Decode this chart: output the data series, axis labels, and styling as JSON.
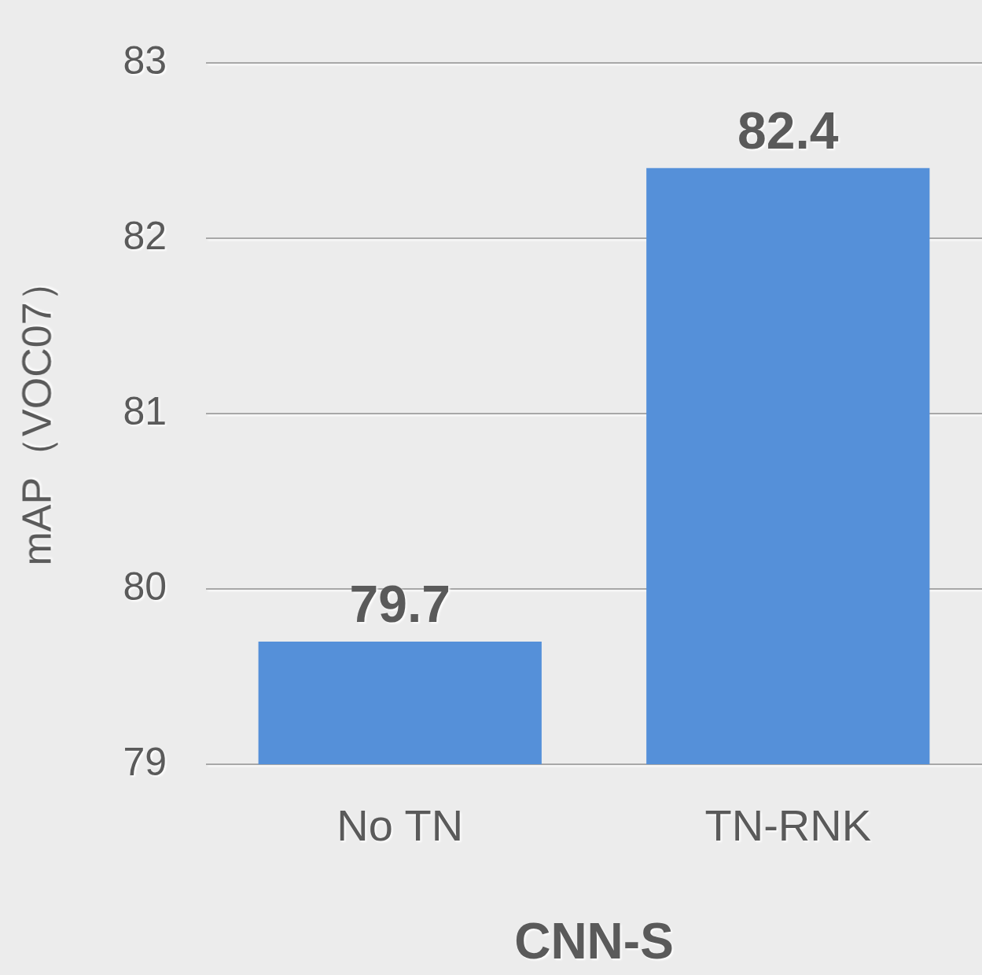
{
  "chart_data": {
    "type": "bar",
    "xlabel": "CNN-S",
    "ylabel": "mAP（VOC07）",
    "categories": [
      "No TN",
      "TN-RNK"
    ],
    "values": [
      79.7,
      82.4
    ],
    "color": "#5590d9",
    "ylim": [
      79,
      83
    ],
    "yticks": [
      79,
      80,
      81,
      82,
      83
    ],
    "grid": "y",
    "data_labels": true
  }
}
